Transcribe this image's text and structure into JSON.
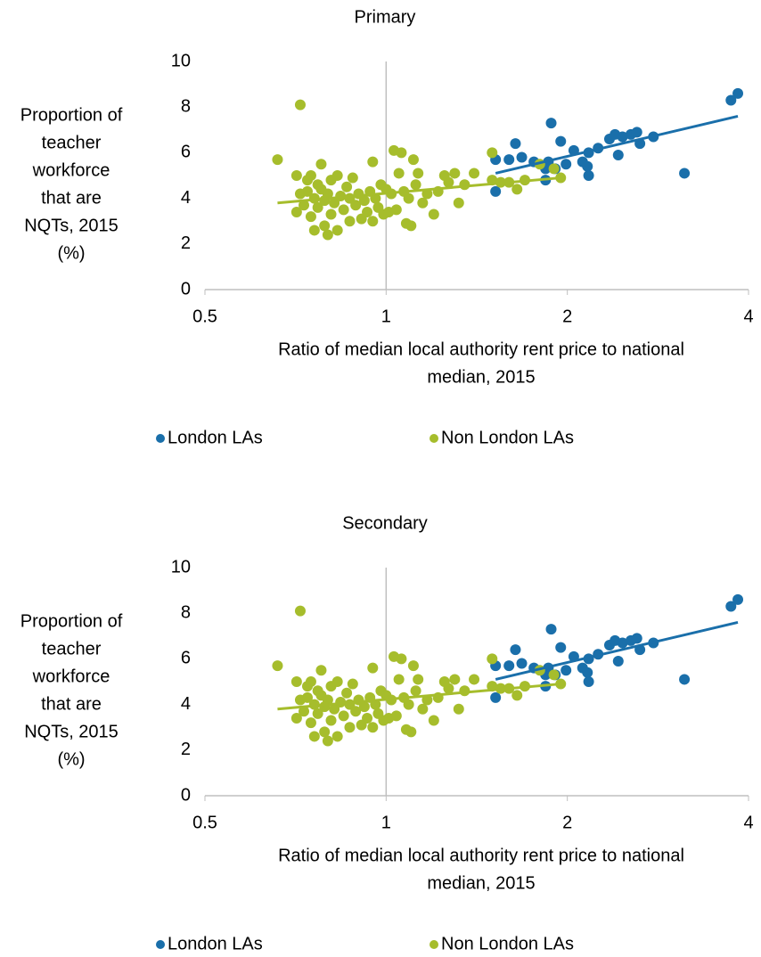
{
  "chart_data": [
    {
      "type": "scatter",
      "title": "Primary",
      "ylabel": [
        "Proportion of",
        "teacher",
        "workforce",
        "that are",
        "NQTs, 2015",
        "(%)"
      ],
      "xlabel": [
        "Ratio of median local authority rent price to national",
        "median, 2015"
      ],
      "xlog": true,
      "xlim": [
        0.5,
        4
      ],
      "xticks": [
        0.5,
        1,
        2,
        4
      ],
      "ylim": [
        0,
        10
      ],
      "yticks": [
        0,
        2,
        4,
        6,
        8,
        10
      ],
      "yaxis_cross": 1,
      "legend": "bottom",
      "series": [
        {
          "name": "London LAs",
          "color": "#1a6faa",
          "x": [
            1.52,
            1.52,
            1.6,
            1.64,
            1.68,
            1.76,
            1.84,
            1.84,
            1.86,
            1.88,
            1.91,
            1.95,
            1.99,
            2.05,
            2.12,
            2.16,
            2.17,
            2.17,
            2.25,
            2.35,
            2.4,
            2.43,
            2.47,
            2.55,
            2.61,
            2.64,
            2.78,
            3.13,
            3.74,
            3.84
          ],
          "values": [
            4.3,
            5.7,
            5.7,
            6.4,
            5.8,
            5.6,
            4.8,
            5.3,
            5.6,
            7.3,
            5.3,
            6.5,
            5.5,
            6.1,
            5.6,
            5.4,
            5.0,
            6.0,
            6.2,
            6.6,
            6.8,
            5.9,
            6.7,
            6.8,
            6.9,
            6.4,
            6.7,
            5.1,
            8.3,
            8.6
          ],
          "trend": {
            "x": [
              1.52,
              3.84
            ],
            "values": [
              5.1,
              7.6
            ]
          }
        },
        {
          "name": "Non London LAs",
          "color": "#a6bd2c",
          "x": [
            0.66,
            0.72,
            0.71,
            0.71,
            0.72,
            0.73,
            0.74,
            0.74,
            0.75,
            0.75,
            0.76,
            0.76,
            0.77,
            0.77,
            0.78,
            0.78,
            0.79,
            0.79,
            0.8,
            0.8,
            0.81,
            0.81,
            0.82,
            0.83,
            0.83,
            0.84,
            0.85,
            0.86,
            0.87,
            0.87,
            0.88,
            0.89,
            0.9,
            0.91,
            0.92,
            0.93,
            0.94,
            0.95,
            0.95,
            0.96,
            0.97,
            0.98,
            0.99,
            1.0,
            1.01,
            1.02,
            1.03,
            1.04,
            1.05,
            1.06,
            1.07,
            1.08,
            1.09,
            1.1,
            1.11,
            1.12,
            1.13,
            1.15,
            1.17,
            1.2,
            1.22,
            1.25,
            1.27,
            1.3,
            1.32,
            1.35,
            1.4,
            1.5,
            1.5,
            1.55,
            1.6,
            1.65,
            1.7,
            1.9,
            1.95,
            1.8
          ],
          "values": [
            5.7,
            8.1,
            5.0,
            3.4,
            4.2,
            3.7,
            4.8,
            4.3,
            5.0,
            3.2,
            2.6,
            4.0,
            4.6,
            3.6,
            5.5,
            4.4,
            3.9,
            2.8,
            2.4,
            4.2,
            3.3,
            4.8,
            3.8,
            2.6,
            5.0,
            4.1,
            3.5,
            4.5,
            3.0,
            4.0,
            4.9,
            3.7,
            4.2,
            3.1,
            3.9,
            3.4,
            4.3,
            5.6,
            3.0,
            4.0,
            3.6,
            4.6,
            3.3,
            4.4,
            3.4,
            4.2,
            6.1,
            3.5,
            5.1,
            6.0,
            4.3,
            2.9,
            4.0,
            2.8,
            5.7,
            4.6,
            5.1,
            3.8,
            4.2,
            3.3,
            4.3,
            5.0,
            4.7,
            5.1,
            3.8,
            4.6,
            5.1,
            6.0,
            4.8,
            4.7,
            4.7,
            4.4,
            4.8,
            5.3,
            4.9,
            5.5
          ],
          "trend": {
            "x": [
              0.66,
              1.95
            ],
            "values": [
              3.8,
              4.9
            ]
          }
        }
      ]
    },
    {
      "type": "scatter",
      "title": "Secondary",
      "ylabel": [
        "Proportion of",
        "teacher",
        "workforce",
        "that are",
        "NQTs, 2015",
        "(%)"
      ],
      "xlabel": [
        "Ratio of median local authority rent price to national",
        "median, 2015"
      ],
      "xlog": true,
      "xlim": [
        0.5,
        4
      ],
      "xticks": [
        0.5,
        1,
        2,
        4
      ],
      "ylim": [
        0,
        10
      ],
      "yticks": [
        0,
        2,
        4,
        6,
        8,
        10
      ],
      "yaxis_cross": 1,
      "legend": "bottom",
      "series": [
        {
          "name": "London LAs",
          "color": "#1a6faa",
          "x": [
            1.52,
            1.52,
            1.6,
            1.64,
            1.68,
            1.76,
            1.84,
            1.84,
            1.86,
            1.88,
            1.91,
            1.95,
            1.99,
            2.05,
            2.12,
            2.16,
            2.17,
            2.17,
            2.25,
            2.35,
            2.4,
            2.43,
            2.47,
            2.55,
            2.61,
            2.64,
            2.78,
            3.13,
            3.74,
            3.84
          ],
          "values": [
            4.3,
            5.7,
            5.7,
            6.4,
            5.8,
            5.6,
            4.8,
            5.3,
            5.6,
            7.3,
            5.3,
            6.5,
            5.5,
            6.1,
            5.6,
            5.4,
            5.0,
            6.0,
            6.2,
            6.6,
            6.8,
            5.9,
            6.7,
            6.8,
            6.9,
            6.4,
            6.7,
            5.1,
            8.3,
            8.6
          ],
          "trend": {
            "x": [
              1.52,
              3.84
            ],
            "values": [
              5.1,
              7.6
            ]
          }
        },
        {
          "name": "Non London LAs",
          "color": "#a6bd2c",
          "x": [
            0.66,
            0.72,
            0.71,
            0.71,
            0.72,
            0.73,
            0.74,
            0.74,
            0.75,
            0.75,
            0.76,
            0.76,
            0.77,
            0.77,
            0.78,
            0.78,
            0.79,
            0.79,
            0.8,
            0.8,
            0.81,
            0.81,
            0.82,
            0.83,
            0.83,
            0.84,
            0.85,
            0.86,
            0.87,
            0.87,
            0.88,
            0.89,
            0.9,
            0.91,
            0.92,
            0.93,
            0.94,
            0.95,
            0.95,
            0.96,
            0.97,
            0.98,
            0.99,
            1.0,
            1.01,
            1.02,
            1.03,
            1.04,
            1.05,
            1.06,
            1.07,
            1.08,
            1.09,
            1.1,
            1.11,
            1.12,
            1.13,
            1.15,
            1.17,
            1.2,
            1.22,
            1.25,
            1.27,
            1.3,
            1.32,
            1.35,
            1.4,
            1.5,
            1.5,
            1.55,
            1.6,
            1.65,
            1.7,
            1.9,
            1.95,
            1.8
          ],
          "values": [
            5.7,
            8.1,
            5.0,
            3.4,
            4.2,
            3.7,
            4.8,
            4.3,
            5.0,
            3.2,
            2.6,
            4.0,
            4.6,
            3.6,
            5.5,
            4.4,
            3.9,
            2.8,
            2.4,
            4.2,
            3.3,
            4.8,
            3.8,
            2.6,
            5.0,
            4.1,
            3.5,
            4.5,
            3.0,
            4.0,
            4.9,
            3.7,
            4.2,
            3.1,
            3.9,
            3.4,
            4.3,
            5.6,
            3.0,
            4.0,
            3.6,
            4.6,
            3.3,
            4.4,
            3.4,
            4.2,
            6.1,
            3.5,
            5.1,
            6.0,
            4.3,
            2.9,
            4.0,
            2.8,
            5.7,
            4.6,
            5.1,
            3.8,
            4.2,
            3.3,
            4.3,
            5.0,
            4.7,
            5.1,
            3.8,
            4.6,
            5.1,
            6.0,
            4.8,
            4.7,
            4.7,
            4.4,
            4.8,
            5.3,
            4.9,
            5.5
          ],
          "trend": {
            "x": [
              0.66,
              1.95
            ],
            "values": [
              3.8,
              4.9
            ]
          }
        }
      ]
    }
  ]
}
